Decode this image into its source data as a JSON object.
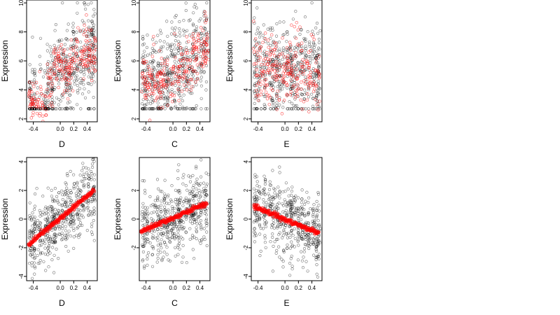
{
  "chart_data": [
    {
      "type": "scatter",
      "xlabel": "D",
      "ylabel": "Expression",
      "xlim": [
        -0.5,
        0.55
      ],
      "ylim": [
        1.8,
        10.2
      ],
      "xticks": [
        "-0.4",
        "0.0",
        "0.2",
        "0.4"
      ],
      "xtick_values": [
        -0.4,
        0,
        0.2,
        0.4
      ],
      "yticks": [
        "2",
        "4",
        "6",
        "8",
        "10"
      ],
      "ytick_values": [
        2,
        4,
        6,
        8,
        10
      ],
      "observed_color": "#000000",
      "fitted_color": "#ff0000",
      "trend": {
        "kind": "step",
        "x_min": -0.48,
        "x_max": 0.53,
        "levels": [
          [
            -0.48,
            3.2
          ],
          [
            -0.2,
            4.2
          ],
          [
            -0.1,
            5.8
          ],
          [
            0.05,
            5.0
          ],
          [
            0.15,
            6.3
          ],
          [
            0.35,
            6.8
          ]
        ]
      }
    },
    {
      "type": "scatter",
      "xlabel": "C",
      "ylabel": "Expression",
      "xlim": [
        -0.5,
        0.55
      ],
      "ylim": [
        1.8,
        10.2
      ],
      "xticks": [
        "-0.4",
        "0.0",
        "0.2",
        "0.4"
      ],
      "xtick_values": [
        -0.4,
        0,
        0.2,
        0.4
      ],
      "yticks": [
        "2",
        "4",
        "6",
        "8",
        "10"
      ],
      "ytick_values": [
        2,
        4,
        6,
        8,
        10
      ],
      "observed_color": "#000000",
      "fitted_color": "#ff0000",
      "trend": {
        "kind": "step",
        "x_min": -0.47,
        "x_max": 0.5,
        "levels": [
          [
            -0.47,
            4.5
          ],
          [
            -0.2,
            4.8
          ],
          [
            0.0,
            5.6
          ],
          [
            0.3,
            6.4
          ],
          [
            0.45,
            6.9
          ]
        ]
      }
    },
    {
      "type": "scatter",
      "xlabel": "E",
      "ylabel": "Expression",
      "xlim": [
        -0.5,
        0.55
      ],
      "ylim": [
        1.8,
        10.2
      ],
      "xticks": [
        "-0.4",
        "0.0",
        "0.2",
        "0.4"
      ],
      "xtick_values": [
        -0.4,
        0,
        0.2,
        0.4
      ],
      "yticks": [
        "2",
        "4",
        "6",
        "8",
        "10"
      ],
      "ytick_values": [
        2,
        4,
        6,
        8,
        10
      ],
      "observed_color": "#000000",
      "fitted_color": "#ff0000",
      "trend": {
        "kind": "cloud",
        "x_min": -0.48,
        "x_max": 0.53,
        "center": 5.3,
        "spread": 1.3
      }
    },
    {
      "type": "scatter",
      "xlabel": "D",
      "ylabel": "Expression",
      "xlim": [
        -0.5,
        0.55
      ],
      "ylim": [
        -4.3,
        4.3
      ],
      "xticks": [
        "-0.4",
        "0.0",
        "0.2",
        "0.4"
      ],
      "xtick_values": [
        -0.4,
        0,
        0.2,
        0.4
      ],
      "yticks": [
        "-4",
        "-2",
        "0",
        "2",
        "4"
      ],
      "ytick_values": [
        -4,
        -2,
        0,
        2,
        4
      ],
      "observed_color": "#000000",
      "fitted_color": "#ff0000",
      "trend": {
        "kind": "line",
        "x0": -0.47,
        "y0": -1.75,
        "x1": 0.5,
        "y1": 2.0
      }
    },
    {
      "type": "scatter",
      "xlabel": "C",
      "ylabel": "Expression",
      "xlim": [
        -0.5,
        0.55
      ],
      "ylim": [
        -4.3,
        4.3
      ],
      "xticks": [
        "-0.4",
        "0.0",
        "0.2",
        "0.4"
      ],
      "xtick_values": [
        -0.4,
        0,
        0.2,
        0.4
      ],
      "yticks": [
        "-2",
        "0",
        "2"
      ],
      "ytick_values": [
        -2,
        0,
        2
      ],
      "observed_color": "#000000",
      "fitted_color": "#ff0000",
      "trend": {
        "kind": "line",
        "x0": -0.48,
        "y0": -0.9,
        "x1": 0.5,
        "y1": 1.1
      }
    },
    {
      "type": "scatter",
      "xlabel": "E",
      "ylabel": "Expression",
      "xlim": [
        -0.5,
        0.55
      ],
      "ylim": [
        -4.3,
        4.3
      ],
      "xticks": [
        "-0.4",
        "0.0",
        "0.2",
        "0.4"
      ],
      "xtick_values": [
        -0.4,
        0,
        0.2,
        0.4
      ],
      "yticks": [
        "-4",
        "-2",
        "0",
        "2",
        "4"
      ],
      "ytick_values": [
        -4,
        -2,
        0,
        2,
        4
      ],
      "observed_color": "#000000",
      "fitted_color": "#ff0000",
      "trend": {
        "kind": "line",
        "x0": -0.46,
        "y0": 0.9,
        "x1": 0.5,
        "y1": -1.0
      }
    }
  ]
}
